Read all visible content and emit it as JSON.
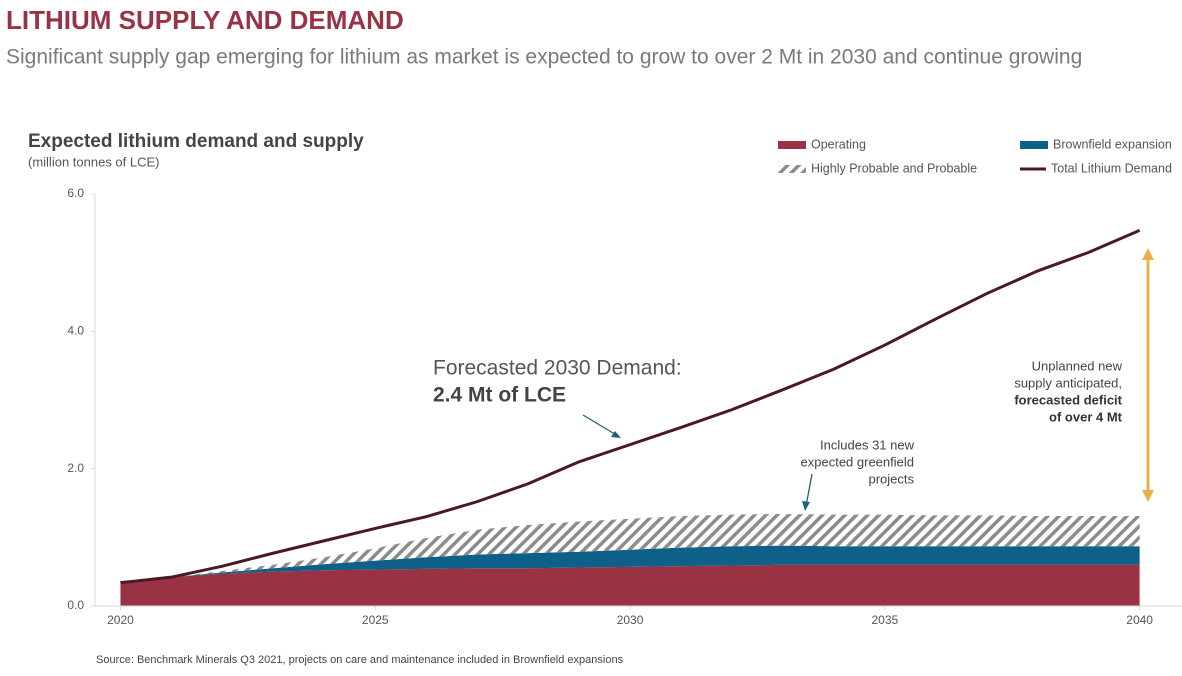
{
  "chart_data": {
    "type": "stacked-area",
    "header_title": "LITHIUM SUPPLY AND DEMAND",
    "subtitle": "Significant supply gap emerging for lithium as market is expected to grow to over 2 Mt in 2030 and continue growing",
    "title": "Expected lithium demand and supply",
    "y_label": "(million tonnes of LCE)",
    "source": "Source: Benchmark Minerals Q3 2021, projects on care and maintenance included in Brownfield expansions",
    "x": [
      2020,
      2021,
      2022,
      2023,
      2024,
      2025,
      2026,
      2027,
      2028,
      2029,
      2030,
      2031,
      2032,
      2033,
      2034,
      2035,
      2036,
      2037,
      2038,
      2039,
      2040
    ],
    "xlim": [
      2019.5,
      2040.4
    ],
    "xticks": [
      2020,
      2025,
      2030,
      2035,
      2040
    ],
    "ylim": [
      0,
      6
    ],
    "yticks": [
      {
        "value": 0,
        "label": "0.0"
      },
      {
        "value": 2,
        "label": "2.0"
      },
      {
        "value": 4,
        "label": "4.0"
      },
      {
        "value": 6,
        "label": "6.0"
      }
    ],
    "series": [
      {
        "name": "Operating",
        "color": "#993344",
        "stack": true,
        "values": [
          0.34,
          0.42,
          0.47,
          0.5,
          0.52,
          0.53,
          0.54,
          0.55,
          0.55,
          0.56,
          0.57,
          0.58,
          0.59,
          0.6,
          0.6,
          0.6,
          0.6,
          0.6,
          0.6,
          0.6,
          0.6
        ]
      },
      {
        "name": "Brownfield expansion",
        "color": "#0e6088",
        "stack": true,
        "values": [
          0,
          0,
          0.02,
          0.05,
          0.09,
          0.13,
          0.17,
          0.2,
          0.22,
          0.23,
          0.25,
          0.27,
          0.28,
          0.28,
          0.27,
          0.27,
          0.27,
          0.27,
          0.27,
          0.27,
          0.27
        ]
      },
      {
        "name": "Highly Probable and Probable",
        "color": "#8c8c8c",
        "stack": true,
        "pattern": "hatched",
        "values": [
          0,
          0,
          0.02,
          0.05,
          0.1,
          0.18,
          0.28,
          0.36,
          0.41,
          0.44,
          0.45,
          0.46,
          0.46,
          0.46,
          0.46,
          0.46,
          0.45,
          0.45,
          0.44,
          0.44,
          0.44
        ]
      },
      {
        "name": "Total Lithium Demand",
        "color": "#4a1a24",
        "stack": false,
        "values": [
          0.34,
          0.42,
          0.58,
          0.77,
          0.95,
          1.13,
          1.3,
          1.52,
          1.78,
          2.1,
          2.35,
          2.6,
          2.86,
          3.15,
          3.45,
          3.8,
          4.18,
          4.55,
          4.88,
          5.15,
          5.47
        ]
      }
    ],
    "annotations": [
      {
        "lines": [
          "Forecasted 2030 Demand:",
          "2.4 Mt of LCE"
        ]
      },
      {
        "lines": [
          "Includes 31 new",
          "expected greenfield",
          "projects"
        ]
      },
      {
        "lines": [
          "Unplanned new",
          "supply anticipated,",
          "forecasted deficit",
          "of over 4 Mt"
        ]
      }
    ]
  }
}
